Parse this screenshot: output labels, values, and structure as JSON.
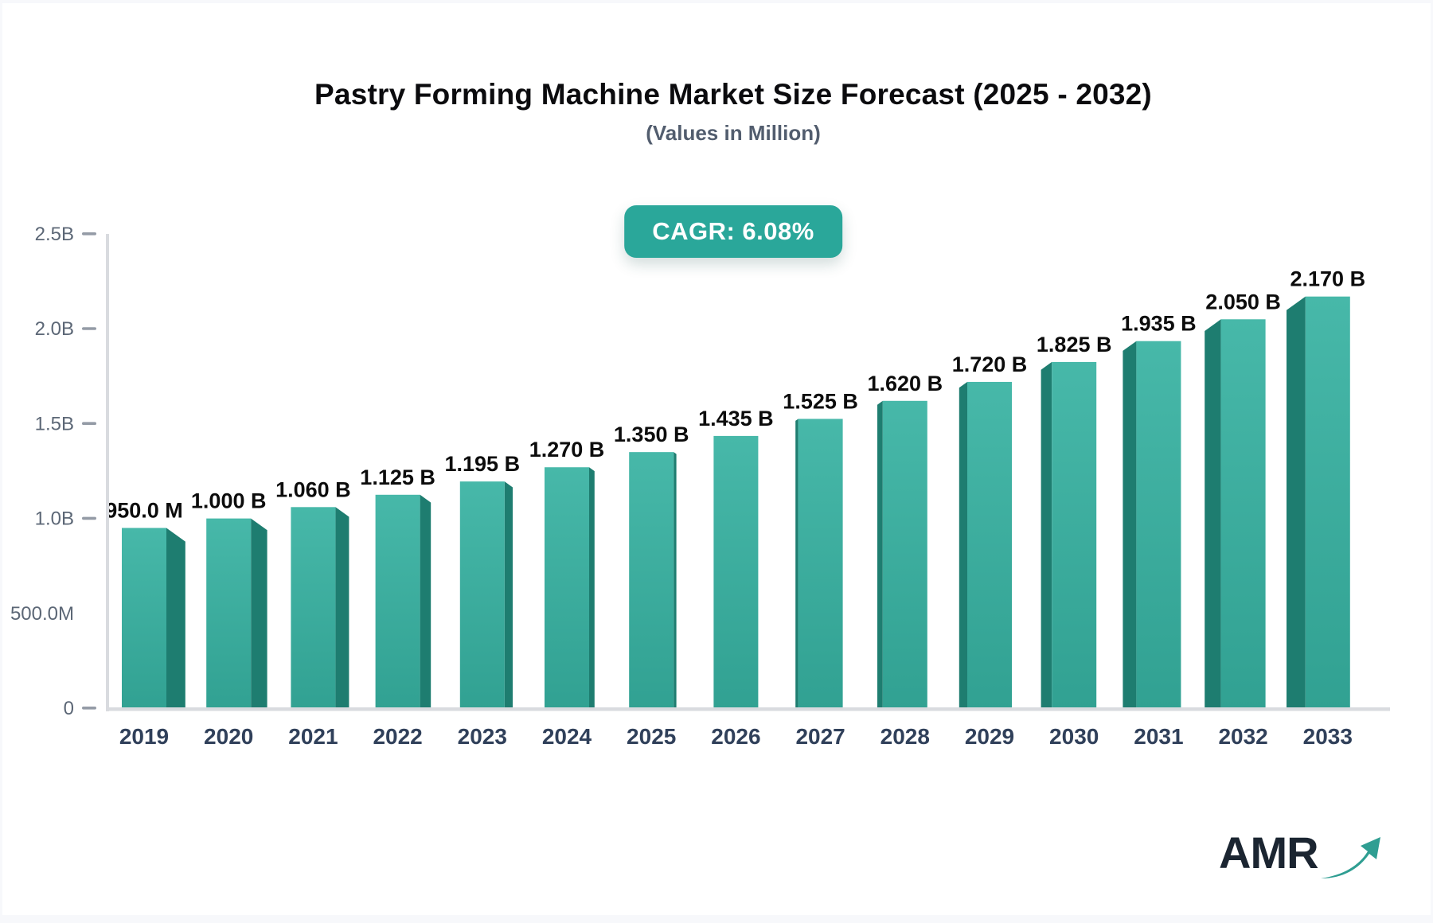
{
  "header": {
    "title": "Pastry Forming Machine Market Size Forecast (2025 - 2032)",
    "subtitle": "(Values in Million)",
    "cagr_label": "CAGR: 6.08%"
  },
  "logo": {
    "text": "AMR",
    "icon": "growth-arrow-icon"
  },
  "chart_data": {
    "type": "bar",
    "title": "Pastry Forming Machine Market Size Forecast (2025 - 2032)",
    "subtitle": "(Values in Million)",
    "cagr_percent": 6.08,
    "categories": [
      "2019",
      "2020",
      "2021",
      "2022",
      "2023",
      "2024",
      "2025",
      "2026",
      "2027",
      "2028",
      "2029",
      "2030",
      "2031",
      "2032",
      "2033"
    ],
    "values_millions": [
      950,
      1000,
      1060,
      1125,
      1195,
      1270,
      1350,
      1435,
      1525,
      1620,
      1720,
      1825,
      1935,
      2050,
      2170
    ],
    "bar_labels": [
      "950.0 M",
      "1.000 B",
      "1.060 B",
      "1.125 B",
      "1.195 B",
      "1.270 B",
      "1.350 B",
      "1.435 B",
      "1.525 B",
      "1.620 B",
      "1.720 B",
      "1.825 B",
      "1.935 B",
      "2.050 B",
      "2.170 B"
    ],
    "y_axis": {
      "range_millions": [
        0,
        2500
      ],
      "ticks": [
        {
          "label": "2.5B",
          "value_millions": 2500,
          "tick_mark": true
        },
        {
          "label": "2.0B",
          "value_millions": 2000,
          "tick_mark": true
        },
        {
          "label": "1.5B",
          "value_millions": 1500,
          "tick_mark": true
        },
        {
          "label": "1.0B",
          "value_millions": 1000,
          "tick_mark": true
        },
        {
          "label": "500.0M",
          "value_millions": 500,
          "tick_mark": false
        },
        {
          "label": "0",
          "value_millions": 0,
          "tick_mark": true
        }
      ]
    },
    "xlabel": "",
    "ylabel": "",
    "legend": {
      "shown": false
    },
    "grid": {
      "shown": false
    },
    "colors": {
      "bar_face_top": "#47b8a9",
      "bar_face_bottom": "#31a192",
      "bar_side": "#1e7d70",
      "badge_bg": "#2aa79a",
      "axis_line": "#d9dbdf",
      "tick_dash": "#949ba6",
      "y_label": "#5c6776",
      "x_label": "#30405a",
      "value_label": "#0c0c0c",
      "title": "#0b0b0e",
      "subtitle": "#525d6e",
      "logo_text": "#1b2531",
      "logo_arrow": "#2f9e92"
    }
  }
}
